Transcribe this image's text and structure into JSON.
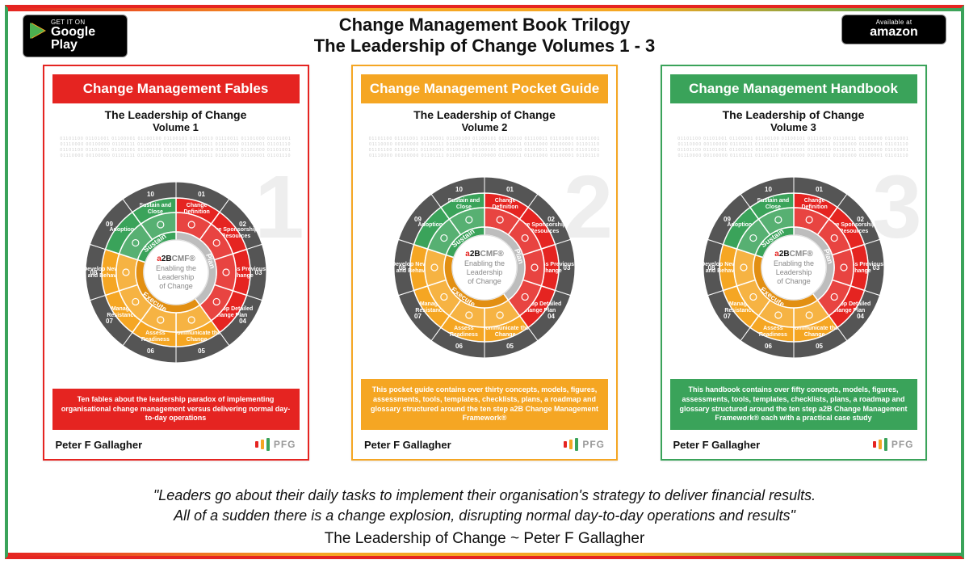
{
  "header": {
    "line1": "Change Management Book Trilogy",
    "line2": "The Leadership of Change Volumes 1 - 3"
  },
  "badges": {
    "googleplay_small": "GET IT ON",
    "googleplay_big": "Google Play",
    "amazon_small": "Available at",
    "amazon_big": "amazon"
  },
  "colors": {
    "red": "#e52421",
    "amber": "#f5a623",
    "green": "#3aa35a",
    "band_text": "#ffffff",
    "dark_amber": "#e28f12",
    "gray_ring": "#bdbdbd"
  },
  "books": [
    {
      "band_title": "Change Management Fables",
      "band_color": "#e52421",
      "border_color": "#e52421",
      "subtitle": "The Leadership of Change",
      "volume": "Volume 1",
      "big_number": "1",
      "description": "Ten fables about the leadership paradox of implementing organisational change management versus delivering normal day-to-day operations"
    },
    {
      "band_title": "Change Management Pocket Guide",
      "band_color": "#f5a623",
      "border_color": "#f5a623",
      "subtitle": "The Leadership of Change",
      "volume": "Volume 2",
      "big_number": "2",
      "description": "This pocket guide contains over thirty concepts, models, figures, assessments, tools, templates, checklists, plans, a roadmap and glossary structured around the ten step a2B Change Management Framework®"
    },
    {
      "band_title": "Change Management Handbook",
      "band_color": "#3aa35a",
      "border_color": "#3aa35a",
      "subtitle": "The Leadership of Change",
      "volume": "Volume 3",
      "big_number": "3",
      "description": "This handbook contains over fifty concepts, models, figures, assessments, tools, templates, checklists, plans, a roadmap and glossary structured around the ten step a2B Change Management Framework® each with a practical case study"
    }
  ],
  "common": {
    "author": "Peter F Gallagher",
    "binary": "01101100 01101001 01100001 01100100 01100101 01110010 01110011 01101000 01101001 01110000 00100000 01101111 01100110 00100000 01100011 01101000 01100001 01101110",
    "pfg_label": "PFG"
  },
  "wheel": {
    "center_brand": "a2BCMF®",
    "center_line1": "Enabling the",
    "center_line2": "Leadership",
    "center_line3": "of Change",
    "inner_labels": [
      "Plan",
      "Execute",
      "Sustain"
    ],
    "inner_colors": [
      "#bdbdbd",
      "#e28f12",
      "#3aa35a"
    ],
    "segments": [
      {
        "num": "01",
        "label": "Change Definition",
        "color": "#e52421"
      },
      {
        "num": "02",
        "label": "Secure Sponsorship and Resources",
        "color": "#e52421"
      },
      {
        "num": "03",
        "label": "Assess Previous Change",
        "color": "#e52421"
      },
      {
        "num": "04",
        "label": "Develop Detailed Change Plan",
        "color": "#e52421"
      },
      {
        "num": "05",
        "label": "Communicate the Change",
        "color": "#f5a623"
      },
      {
        "num": "06",
        "label": "Assess Readiness",
        "color": "#f5a623"
      },
      {
        "num": "07",
        "label": "Manage Resistance",
        "color": "#f5a623"
      },
      {
        "num": "08",
        "label": "Develop New Skills and Behaviours",
        "color": "#f5a623"
      },
      {
        "num": "09",
        "label": "Adoption",
        "color": "#3aa35a"
      },
      {
        "num": "10",
        "label": "Sustain and Close",
        "color": "#3aa35a"
      }
    ]
  },
  "footer": {
    "quote_l1": "\"Leaders go about their daily tasks to implement their organisation's strategy to deliver financial results.",
    "quote_l2": "All of a sudden there is a change explosion, disrupting normal day-to-day operations and results\"",
    "attribution": "The Leadership of Change ~ Peter F Gallagher"
  }
}
